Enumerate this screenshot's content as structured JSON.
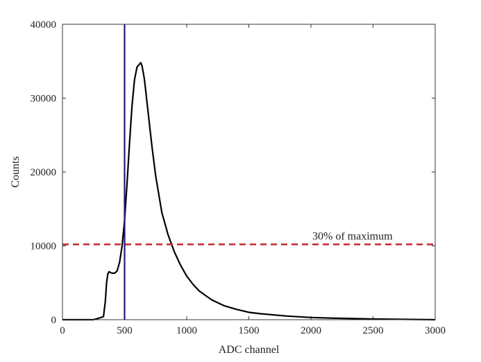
{
  "chart_data": {
    "type": "line",
    "xlabel": "ADC channel",
    "ylabel": "Counts",
    "xlim": [
      0,
      3000
    ],
    "ylim": [
      0,
      40000
    ],
    "xticks": [
      0,
      500,
      1000,
      1500,
      2000,
      2500,
      3000
    ],
    "yticks": [
      0,
      10000,
      20000,
      30000,
      40000
    ],
    "grid": false,
    "series": [
      {
        "color": "#000000",
        "style": "solid",
        "x": [
          0,
          250,
          330,
          345,
          355,
          365,
          375,
          385,
          400,
          420,
          440,
          460,
          480,
          500,
          520,
          540,
          560,
          580,
          600,
          620,
          630,
          640,
          650,
          660,
          680,
          700,
          720,
          750,
          800,
          850,
          900,
          950,
          1000,
          1050,
          1100,
          1200,
          1300,
          1400,
          1500,
          1600,
          1800,
          2000,
          2200,
          2500,
          3000
        ],
        "y": [
          0,
          0,
          400,
          2500,
          5000,
          6200,
          6500,
          6400,
          6300,
          6300,
          6600,
          7800,
          10000,
          13500,
          18500,
          24000,
          29000,
          32500,
          34200,
          34600,
          34800,
          34400,
          33500,
          32500,
          29500,
          26500,
          23500,
          19500,
          14500,
          11500,
          9200,
          7400,
          5900,
          4800,
          3900,
          2700,
          1900,
          1400,
          1000,
          800,
          500,
          300,
          200,
          100,
          0
        ]
      }
    ],
    "vline": {
      "x": 500,
      "color": "#1a1a7a"
    },
    "hline": {
      "y": 10200,
      "color": "#c0282d",
      "style": "dashed",
      "label": "30% of maximum",
      "label_x": 2000
    }
  }
}
